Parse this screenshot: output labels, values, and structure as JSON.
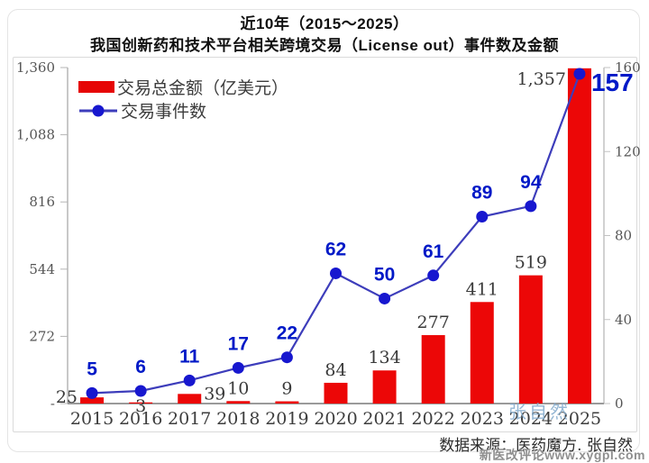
{
  "title": {
    "line1": "近10年（2015～2025）",
    "line2": "我国创新药和技术平台相关跨境交易（License out）事件数及金额"
  },
  "legend": {
    "items": [
      {
        "label": "交易总金额（亿美元）",
        "marker": "bar",
        "color": "#e60505"
      },
      {
        "label": "交易事件数",
        "marker": "line-dot",
        "color": "#1717cf"
      }
    ]
  },
  "chart_data": {
    "type": "combo",
    "title": "近10年（2015～2025）我国创新药和技术平台相关跨境交易（License out）事件数及金额",
    "categories": [
      "2015",
      "2016",
      "2017",
      "2018",
      "2019",
      "2020",
      "2021",
      "2022",
      "2023",
      "2024",
      "2025"
    ],
    "series": [
      {
        "name": "交易总金额（亿美元）",
        "type": "bar",
        "axis": "left",
        "color": "#ec0707",
        "values": [
          25,
          3,
          39,
          10,
          9,
          84,
          134,
          277,
          411,
          519,
          1357
        ],
        "labels": [
          "25",
          "3",
          "39",
          "10",
          "9",
          "84",
          "134",
          "277",
          "411",
          "519",
          "1,357"
        ]
      },
      {
        "name": "交易事件数",
        "type": "line",
        "axis": "right",
        "color": "#1717cf",
        "values": [
          5,
          6,
          11,
          17,
          22,
          62,
          50,
          61,
          89,
          94,
          157
        ],
        "labels": [
          "5",
          "6",
          "11",
          "17",
          "22",
          "62",
          "50",
          "61",
          "89",
          "94",
          "157"
        ]
      }
    ],
    "left_axis": {
      "range": [
        0,
        1360
      ],
      "tick_values": [
        0,
        272,
        544,
        816,
        1088,
        1360
      ],
      "tick_labels": [
        "-",
        "272",
        "544",
        "816",
        "1,088",
        "1,360"
      ]
    },
    "right_axis": {
      "range": [
        0,
        160
      ],
      "tick_values": [
        0,
        40,
        80,
        120,
        160
      ],
      "tick_labels": [
        "0",
        "40",
        "80",
        "120",
        "160"
      ]
    },
    "grid": false,
    "legend_position": "top-left"
  },
  "colors": {
    "bar": "#ec0707",
    "line_stroke": "#3d3dbb",
    "dot": "#1717cf",
    "count_label": "#0019c7",
    "bar_label": "#3a3a3a",
    "axis_text": "#555555",
    "year_text": "#3d3d3d"
  },
  "footer": {
    "source": "数据来源：医药魔方. 张自然"
  },
  "watermarks": {
    "plot": "张自然",
    "bottom": "新医改评论www.xygpl.com"
  }
}
